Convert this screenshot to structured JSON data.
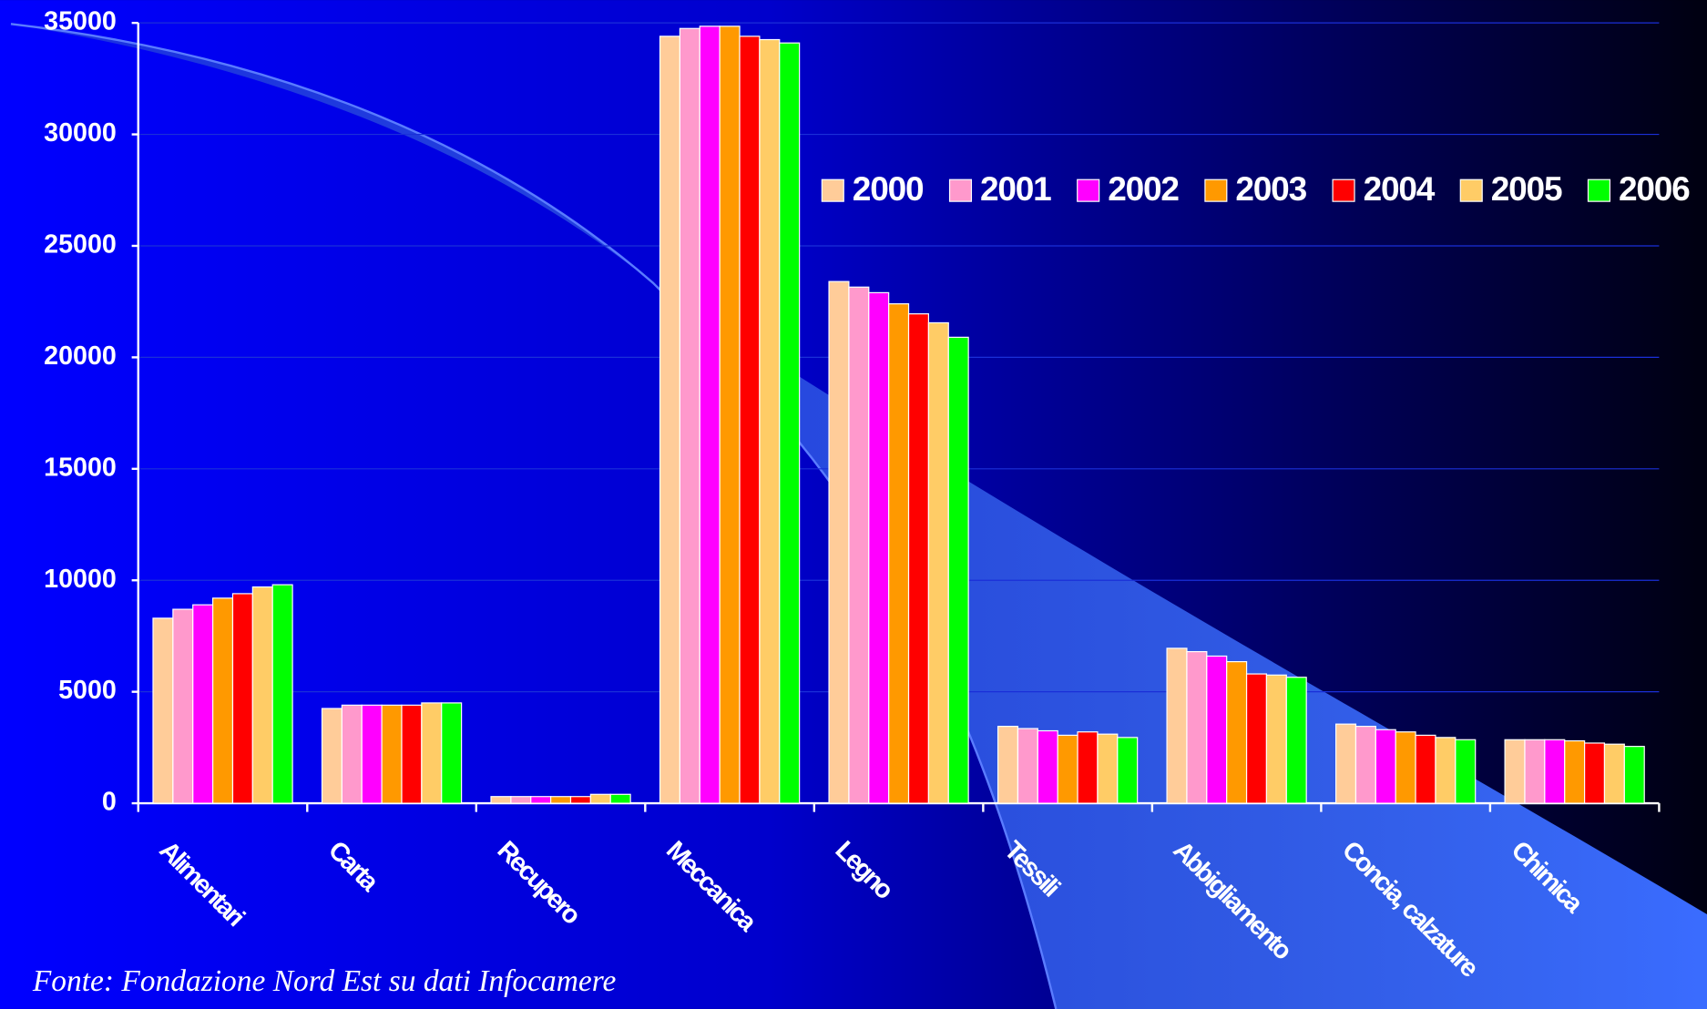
{
  "chart_data": {
    "type": "bar",
    "categories": [
      "Alimentari",
      "Carta",
      "Recupero",
      "Meccanica",
      "Legno",
      "Tessili",
      "Abbigliamento",
      "Concia, calzature",
      "Chimica"
    ],
    "series": [
      {
        "name": "2000",
        "color": "#ffcc99",
        "values": [
          8300,
          4250,
          300,
          34400,
          23400,
          3450,
          6950,
          3550,
          2850
        ]
      },
      {
        "name": "2001",
        "color": "#ff99cc",
        "values": [
          8700,
          4400,
          300,
          34750,
          23150,
          3350,
          6800,
          3450,
          2850
        ]
      },
      {
        "name": "2002",
        "color": "#ff00ff",
        "values": [
          8900,
          4400,
          300,
          34850,
          22900,
          3250,
          6600,
          3300,
          2850
        ]
      },
      {
        "name": "2003",
        "color": "#ff9900",
        "values": [
          9200,
          4400,
          300,
          34850,
          22400,
          3050,
          6350,
          3200,
          2800
        ]
      },
      {
        "name": "2004",
        "color": "#ff0000",
        "values": [
          9400,
          4400,
          300,
          34400,
          21950,
          3200,
          5800,
          3050,
          2700
        ]
      },
      {
        "name": "2005",
        "color": "#ffcc66",
        "values": [
          9700,
          4500,
          400,
          34250,
          21550,
          3100,
          5750,
          2950,
          2650
        ]
      },
      {
        "name": "2006",
        "color": "#00ff00",
        "values": [
          9800,
          4500,
          400,
          34100,
          20900,
          2950,
          5650,
          2850,
          2550
        ]
      }
    ],
    "ylim": [
      0,
      35000
    ],
    "yticks": [
      0,
      5000,
      10000,
      15000,
      20000,
      25000,
      30000,
      35000
    ],
    "grid": true,
    "legend": "top-right",
    "source": "Fonte: Fondazione Nord Est su dati Infocamere"
  }
}
